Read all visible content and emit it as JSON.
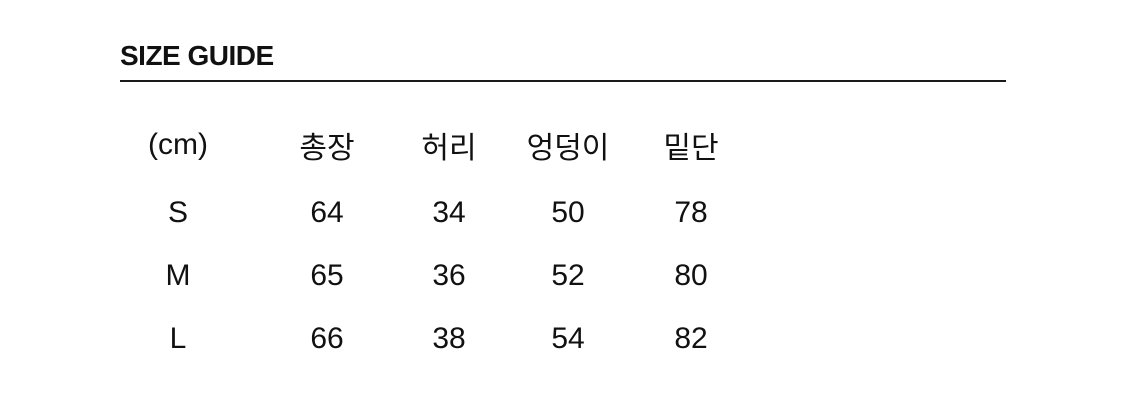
{
  "section": {
    "title": "SIZE GUIDE"
  },
  "size_table": {
    "unit_label": "(cm)",
    "columns": [
      "총장",
      "허리",
      "엉덩이",
      "밑단"
    ],
    "rows": [
      {
        "size": "S",
        "values": [
          64,
          34,
          50,
          78
        ]
      },
      {
        "size": "M",
        "values": [
          65,
          36,
          52,
          80
        ]
      },
      {
        "size": "L",
        "values": [
          66,
          38,
          54,
          82
        ]
      }
    ]
  },
  "colors": {
    "background": "#ffffff",
    "text": "#111111",
    "divider": "#1a1a1a"
  }
}
